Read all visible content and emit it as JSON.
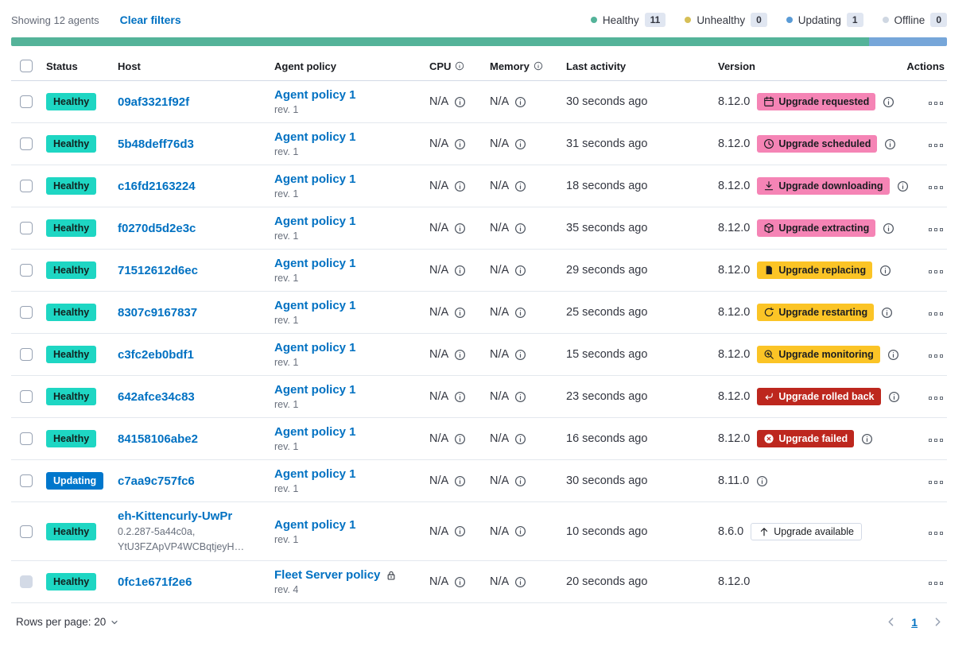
{
  "toolbar": {
    "showing": "Showing 12 agents",
    "clear_filters": "Clear filters"
  },
  "legend": {
    "items": [
      {
        "label": "Healthy",
        "count": "11",
        "color": "#54B399"
      },
      {
        "label": "Unhealthy",
        "count": "0",
        "color": "#D6BF57"
      },
      {
        "label": "Updating",
        "count": "1",
        "color": "#5A9BD6"
      },
      {
        "label": "Offline",
        "count": "0",
        "color": "#CFD7E2"
      }
    ]
  },
  "health_bar": {
    "segments": [
      {
        "status": "healthy",
        "color": "#54B399",
        "fraction": 0.9167
      },
      {
        "status": "updating",
        "color": "#76A6D9",
        "fraction": 0.0833
      }
    ]
  },
  "table": {
    "headers": [
      {
        "label": "",
        "type": "checkbox"
      },
      {
        "label": "Status"
      },
      {
        "label": "Host"
      },
      {
        "label": "Agent policy"
      },
      {
        "label": "CPU",
        "info": true
      },
      {
        "label": "Memory",
        "info": true
      },
      {
        "label": "Last activity"
      },
      {
        "label": "Version"
      },
      {
        "label": "Actions",
        "align": "right"
      }
    ],
    "rows": [
      {
        "status": "Healthy",
        "status_variant": "healthy",
        "host": "09af3321f92f",
        "policy": "Agent policy 1",
        "rev": "rev. 1",
        "cpu": "N/A",
        "memory": "N/A",
        "last_activity": "30 seconds ago",
        "version": "8.12.0",
        "upgrade": {
          "label": "Upgrade requested",
          "icon": "calendar",
          "variant": "accent"
        },
        "badge_info": true
      },
      {
        "status": "Healthy",
        "status_variant": "healthy",
        "host": "5b48deff76d3",
        "policy": "Agent policy 1",
        "rev": "rev. 1",
        "cpu": "N/A",
        "memory": "N/A",
        "last_activity": "31 seconds ago",
        "version": "8.12.0",
        "upgrade": {
          "label": "Upgrade scheduled",
          "icon": "clock",
          "variant": "accent"
        },
        "badge_info": true
      },
      {
        "status": "Healthy",
        "status_variant": "healthy",
        "host": "c16fd2163224",
        "policy": "Agent policy 1",
        "rev": "rev. 1",
        "cpu": "N/A",
        "memory": "N/A",
        "last_activity": "18 seconds ago",
        "version": "8.12.0",
        "upgrade": {
          "label": "Upgrade downloading",
          "icon": "download",
          "variant": "accent"
        },
        "badge_info": true
      },
      {
        "status": "Healthy",
        "status_variant": "healthy",
        "host": "f0270d5d2e3c",
        "policy": "Agent policy 1",
        "rev": "rev. 1",
        "cpu": "N/A",
        "memory": "N/A",
        "last_activity": "35 seconds ago",
        "version": "8.12.0",
        "upgrade": {
          "label": "Upgrade extracting",
          "icon": "package",
          "variant": "accent"
        },
        "badge_info": true
      },
      {
        "status": "Healthy",
        "status_variant": "healthy",
        "host": "71512612d6ec",
        "policy": "Agent policy 1",
        "rev": "rev. 1",
        "cpu": "N/A",
        "memory": "N/A",
        "last_activity": "29 seconds ago",
        "version": "8.12.0",
        "upgrade": {
          "label": "Upgrade replacing",
          "icon": "document",
          "variant": "warning"
        },
        "badge_info": true
      },
      {
        "status": "Healthy",
        "status_variant": "healthy",
        "host": "8307c9167837",
        "policy": "Agent policy 1",
        "rev": "rev. 1",
        "cpu": "N/A",
        "memory": "N/A",
        "last_activity": "25 seconds ago",
        "version": "8.12.0",
        "upgrade": {
          "label": "Upgrade restarting",
          "icon": "refresh",
          "variant": "warning"
        },
        "badge_info": true
      },
      {
        "status": "Healthy",
        "status_variant": "healthy",
        "host": "c3fc2eb0bdf1",
        "policy": "Agent policy 1",
        "rev": "rev. 1",
        "cpu": "N/A",
        "memory": "N/A",
        "last_activity": "15 seconds ago",
        "version": "8.12.0",
        "upgrade": {
          "label": "Upgrade monitoring",
          "icon": "inspect",
          "variant": "warning"
        },
        "badge_info": true
      },
      {
        "status": "Healthy",
        "status_variant": "healthy",
        "host": "642afce34c83",
        "policy": "Agent policy 1",
        "rev": "rev. 1",
        "cpu": "N/A",
        "memory": "N/A",
        "last_activity": "23 seconds ago",
        "version": "8.12.0",
        "upgrade": {
          "label": "Upgrade rolled back",
          "icon": "return",
          "variant": "danger"
        },
        "badge_info": true
      },
      {
        "status": "Healthy",
        "status_variant": "healthy",
        "host": "84158106abe2",
        "policy": "Agent policy 1",
        "rev": "rev. 1",
        "cpu": "N/A",
        "memory": "N/A",
        "last_activity": "16 seconds ago",
        "version": "8.12.0",
        "upgrade": {
          "label": "Upgrade failed",
          "icon": "crossCircle",
          "variant": "danger"
        },
        "badge_info": true
      },
      {
        "status": "Updating",
        "status_variant": "updating",
        "host": "c7aa9c757fc6",
        "policy": "Agent policy 1",
        "rev": "rev. 1",
        "cpu": "N/A",
        "memory": "N/A",
        "last_activity": "30 seconds ago",
        "version": "8.11.0",
        "version_info": true
      },
      {
        "status": "Healthy",
        "status_variant": "healthy",
        "host": "eh-Kittencurly-UwPr",
        "host_sub": [
          "0.2.287-5a44c0a,",
          "YtU3FZApVP4WCBqtjeyH…"
        ],
        "policy": "Agent policy 1",
        "rev": "rev. 1",
        "cpu": "N/A",
        "memory": "N/A",
        "last_activity": "10 seconds ago",
        "version": "8.6.0",
        "upgrade": {
          "label": "Upgrade available",
          "icon": "arrowUp",
          "variant": "hollow"
        }
      },
      {
        "status": "Healthy",
        "status_variant": "healthy",
        "host": "0fc1e671f2e6",
        "policy": "Fleet Server policy",
        "policy_lock": true,
        "rev": "rev. 4",
        "cpu": "N/A",
        "memory": "N/A",
        "last_activity": "20 seconds ago",
        "version": "8.12.0",
        "checkbox_disabled": true
      }
    ]
  },
  "footer": {
    "rows_per_page": "Rows per page: 20",
    "page": "1"
  },
  "colors": {
    "link": "#0071C2",
    "healthy_badge": "#1ED6C3",
    "updating_badge": "#0077CC",
    "accent_badge": "#F584B5",
    "warning_badge": "#FBC426",
    "danger_badge": "#BD271E"
  }
}
